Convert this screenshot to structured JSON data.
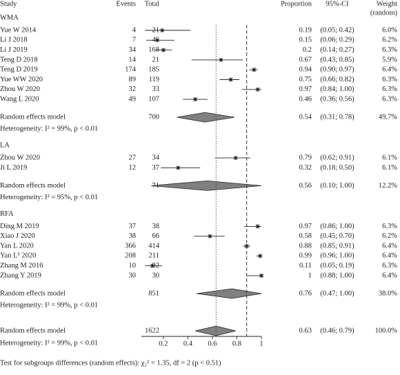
{
  "chart_data": {
    "type": "forest",
    "header": {
      "study": "Study",
      "events": "Events",
      "total": "Total",
      "proportion": "Proportion",
      "ci": "95%-CI",
      "weight": [
        "Weight",
        "(random)"
      ]
    },
    "groups": [
      {
        "name": "WMA",
        "studies": [
          {
            "name": "Yue W 2014",
            "events": 4,
            "total": 21,
            "proportion": 0.19,
            "lower": 0.05,
            "upper": 0.42,
            "ci": "(0.05; 0.42)",
            "weight": 6.0,
            "weight_label": "6.0%"
          },
          {
            "name": "Li J 2018",
            "events": 7,
            "total": 46,
            "proportion": 0.15,
            "lower": 0.06,
            "upper": 0.29,
            "ci": "(0.06; 0.29)",
            "weight": 6.2,
            "weight_label": "6.2%"
          },
          {
            "name": "Li J 2019",
            "events": 34,
            "total": 168,
            "proportion": 0.2,
            "lower": 0.14,
            "upper": 0.27,
            "ci": "(0.14; 0.27)",
            "weight": 6.3,
            "weight_label": "6.3%"
          },
          {
            "name": "Teng D 2018",
            "events": 14,
            "total": 21,
            "proportion": 0.67,
            "lower": 0.43,
            "upper": 0.85,
            "ci": "(0.43; 0.85)",
            "weight": 5.9,
            "weight_label": "5.9%"
          },
          {
            "name": "Teng D 2019",
            "events": 174,
            "total": 185,
            "proportion": 0.94,
            "lower": 0.9,
            "upper": 0.97,
            "ci": "(0.90; 0.97)",
            "weight": 6.4,
            "weight_label": "6.4%"
          },
          {
            "name": "Yue WW 2020",
            "events": 89,
            "total": 119,
            "proportion": 0.75,
            "lower": 0.66,
            "upper": 0.82,
            "ci": "(0.66; 0.82)",
            "weight": 6.3,
            "weight_label": "6.3%"
          },
          {
            "name": "Zhou W 2020",
            "events": 32,
            "total": 33,
            "proportion": 0.97,
            "lower": 0.84,
            "upper": 1.0,
            "ci": "(0.84; 1.00)",
            "weight": 6.3,
            "weight_label": "6.3%"
          },
          {
            "name": "Wang L 2020",
            "events": 49,
            "total": 107,
            "proportion": 0.46,
            "lower": 0.36,
            "upper": 0.56,
            "ci": "(0.36; 0.56)",
            "weight": 6.3,
            "weight_label": "6.3%"
          }
        ],
        "model": {
          "name": "Random effects model",
          "total": 700,
          "proportion": 0.54,
          "lower": 0.31,
          "upper": 0.78,
          "ci": "(0.31; 0.78)",
          "weight": 49.7,
          "weight_label": "49.7%"
        },
        "heterogeneity": "Heterogeneity: I² = 99%, p < 0.01"
      },
      {
        "name": "LA",
        "studies": [
          {
            "name": "Zhou W 2020",
            "events": 27,
            "total": 34,
            "proportion": 0.79,
            "lower": 0.62,
            "upper": 0.91,
            "ci": "(0.62; 0.91)",
            "weight": 6.1,
            "weight_label": "6.1%"
          },
          {
            "name": "Ji L 2019",
            "events": 12,
            "total": 37,
            "proportion": 0.32,
            "lower": 0.18,
            "upper": 0.5,
            "ci": "(0.18; 0.50)",
            "weight": 6.1,
            "weight_label": "6.1%"
          }
        ],
        "model": {
          "name": "Random effects model",
          "total": 71,
          "proportion": 0.56,
          "lower": 0.1,
          "upper": 1.0,
          "ci": "(0.10; 1.00)",
          "weight": 12.2,
          "weight_label": "12.2%"
        },
        "heterogeneity": "Heterogeneity: I² = 95%, p < 0.01"
      },
      {
        "name": "RFA",
        "studies": [
          {
            "name": "Ding M 2019",
            "events": 37,
            "total": 38,
            "proportion": 0.97,
            "lower": 0.86,
            "upper": 1.0,
            "ci": "(0.86; 1.00)",
            "weight": 6.3,
            "weight_label": "6.3%"
          },
          {
            "name": "Xiao J 2020",
            "events": 38,
            "total": 66,
            "proportion": 0.58,
            "lower": 0.45,
            "upper": 0.7,
            "ci": "(0.45; 0.70)",
            "weight": 6.2,
            "weight_label": "6.2%"
          },
          {
            "name": "Yan L 2020",
            "events": 366,
            "total": 414,
            "proportion": 0.88,
            "lower": 0.85,
            "upper": 0.91,
            "ci": "(0.85; 0.91)",
            "weight": 6.4,
            "weight_label": "6.4%"
          },
          {
            "name": "Yan Lᵇ 2020",
            "events": 208,
            "total": 211,
            "proportion": 0.99,
            "lower": 0.96,
            "upper": 1.0,
            "ci": "(0.96; 1.00)",
            "weight": 6.4,
            "weight_label": "6.4%"
          },
          {
            "name": "Zhang M 2016",
            "events": 10,
            "total": 92,
            "proportion": 0.11,
            "lower": 0.05,
            "upper": 0.19,
            "ci": "(0.05; 0.19)",
            "weight": 6.3,
            "weight_label": "6.3%"
          },
          {
            "name": "Zhang Y 2019",
            "events": 30,
            "total": 30,
            "proportion": 1.0,
            "lower": 0.88,
            "upper": 1.0,
            "ci": "(0.88; 1.00)",
            "weight": 6.4,
            "weight_label": "6.4%"
          }
        ],
        "model": {
          "name": "Random effects model",
          "total": 851,
          "proportion": 0.76,
          "lower": 0.47,
          "upper": 1.0,
          "ci": "(0.47; 1.00)",
          "weight": 38.0,
          "weight_label": "38.0%"
        },
        "heterogeneity": "Heterogeneity: I² = 99%, p < 0.01"
      }
    ],
    "overall": {
      "name": "Random effects model",
      "total": 1622,
      "proportion": 0.63,
      "lower": 0.46,
      "upper": 0.79,
      "ci": "(0.46; 0.79)",
      "weight": 100.0,
      "weight_label": "100.0%"
    },
    "overall_heterogeneity": "Heterogeneity: I² = 99%, p < 0.01",
    "subgroup_test": "Test for subgroups differences (random effects): χ₂² = 1.35, df = 2 (p < 0.51)",
    "fixed_line": 0.88,
    "xlim": [
      0.02,
      1
    ],
    "xticks": [
      0.2,
      0.4,
      0.6,
      0.8,
      1
    ],
    "square_color": "#808080",
    "diamond_color": "#808080"
  }
}
